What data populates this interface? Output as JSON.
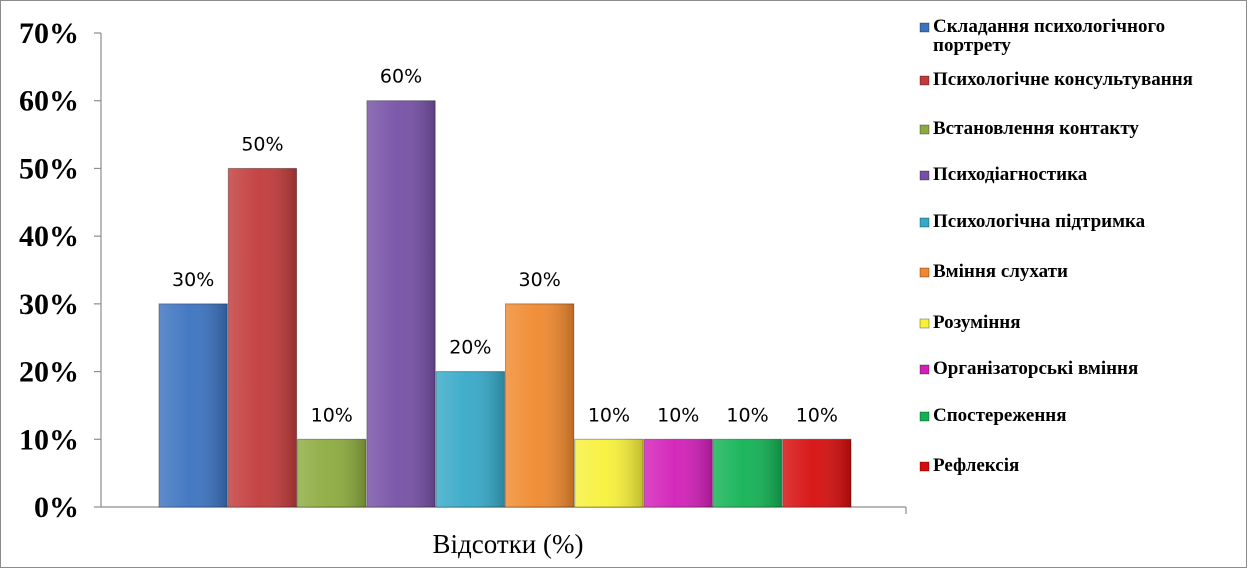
{
  "chart_data": {
    "type": "bar",
    "xlabel": "Відсотки (%)",
    "ylim": [
      0,
      70
    ],
    "yticks": [
      "0%",
      "10%",
      "20%",
      "30%",
      "40%",
      "50%",
      "60%",
      "70%"
    ],
    "grid": false,
    "legend_position": "right",
    "categories": [
      "Відсотки (%)"
    ],
    "series": [
      {
        "name": "Складання психологічного портрету",
        "value": 30,
        "label": "30%",
        "color": "#3b73c0"
      },
      {
        "name": "Психологічне консультування",
        "value": 50,
        "label": "50%",
        "color": "#c23a3a"
      },
      {
        "name": "Встановлення контакту",
        "value": 10,
        "label": "10%",
        "color": "#8cab3e"
      },
      {
        "name": "Психодіагностика",
        "value": 60,
        "label": "60%",
        "color": "#7650a6"
      },
      {
        "name": "Психологічна підтримка",
        "value": 20,
        "label": "20%",
        "color": "#36a9c8"
      },
      {
        "name": "Вміння слухати",
        "value": 30,
        "label": "30%",
        "color": "#f0892e"
      },
      {
        "name": "Розуміння",
        "value": 10,
        "label": "10%",
        "color": "#f7f13a"
      },
      {
        "name": "Організаторські вміння",
        "value": 10,
        "label": "10%",
        "color": "#d21fb8"
      },
      {
        "name": "Спостереження",
        "value": 10,
        "label": "10%",
        "color": "#12b254"
      },
      {
        "name": "Рефлексія",
        "value": 10,
        "label": "10%",
        "color": "#d60d0d"
      }
    ]
  }
}
